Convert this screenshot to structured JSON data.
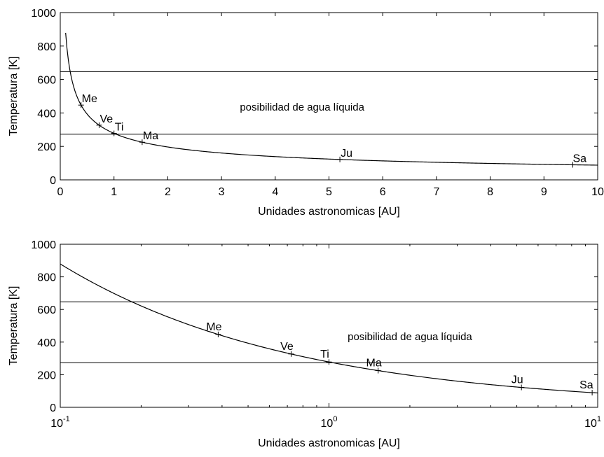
{
  "chart_data": [
    {
      "type": "line",
      "xscale": "linear",
      "xlabel": "Unidades astronomicas [AU]",
      "ylabel": "Temperatura [K]",
      "xlim": [
        0,
        10
      ],
      "ylim": [
        0,
        1000
      ],
      "xticks": [
        "0",
        "1",
        "2",
        "3",
        "4",
        "5",
        "6",
        "7",
        "8",
        "9",
        "10"
      ],
      "yticks": [
        "0",
        "200",
        "400",
        "600",
        "800",
        "1000"
      ],
      "grid": false,
      "curve": {
        "formula": "T = 278 / sqrt(d)",
        "x_range": [
          0.1,
          10
        ]
      },
      "reference_lines": [
        {
          "y": 647
        },
        {
          "y": 273
        }
      ],
      "annotation": {
        "text": "posibilidad de agua líquida",
        "x": 4.5,
        "y": 430
      },
      "points": [
        {
          "label": "Me",
          "x": 0.387,
          "y": 447
        },
        {
          "label": "Ve",
          "x": 0.723,
          "y": 327
        },
        {
          "label": "Ti",
          "x": 1.0,
          "y": 278
        },
        {
          "label": "Ma",
          "x": 1.524,
          "y": 225
        },
        {
          "label": "Ju",
          "x": 5.203,
          "y": 122
        },
        {
          "label": "Sa",
          "x": 9.537,
          "y": 90
        }
      ]
    },
    {
      "type": "line",
      "xscale": "log",
      "xlabel": "Unidades astronomicas [AU]",
      "ylabel": "Temperatura [K]",
      "xlim": [
        0.1,
        10
      ],
      "ylim": [
        0,
        1000
      ],
      "xticks": [
        {
          "base": "10",
          "exp": "-1",
          "value": 0.1
        },
        {
          "base": "10",
          "exp": "0",
          "value": 1
        },
        {
          "base": "10",
          "exp": "1",
          "value": 10
        }
      ],
      "yticks": [
        "0",
        "200",
        "400",
        "600",
        "800",
        "1000"
      ],
      "grid": false,
      "curve": {
        "formula": "T = 278 / sqrt(d)",
        "x_range": [
          0.1,
          10
        ]
      },
      "reference_lines": [
        {
          "y": 647
        },
        {
          "y": 273
        }
      ],
      "annotation": {
        "text": "posibilidad de agua líquida",
        "x": 2.0,
        "y": 430
      },
      "points": [
        {
          "label": "Me",
          "x": 0.387,
          "y": 447
        },
        {
          "label": "Ve",
          "x": 0.723,
          "y": 327
        },
        {
          "label": "Ti",
          "x": 1.0,
          "y": 278
        },
        {
          "label": "Ma",
          "x": 1.524,
          "y": 225
        },
        {
          "label": "Ju",
          "x": 5.203,
          "y": 122
        },
        {
          "label": "Sa",
          "x": 9.537,
          "y": 90
        }
      ]
    }
  ]
}
